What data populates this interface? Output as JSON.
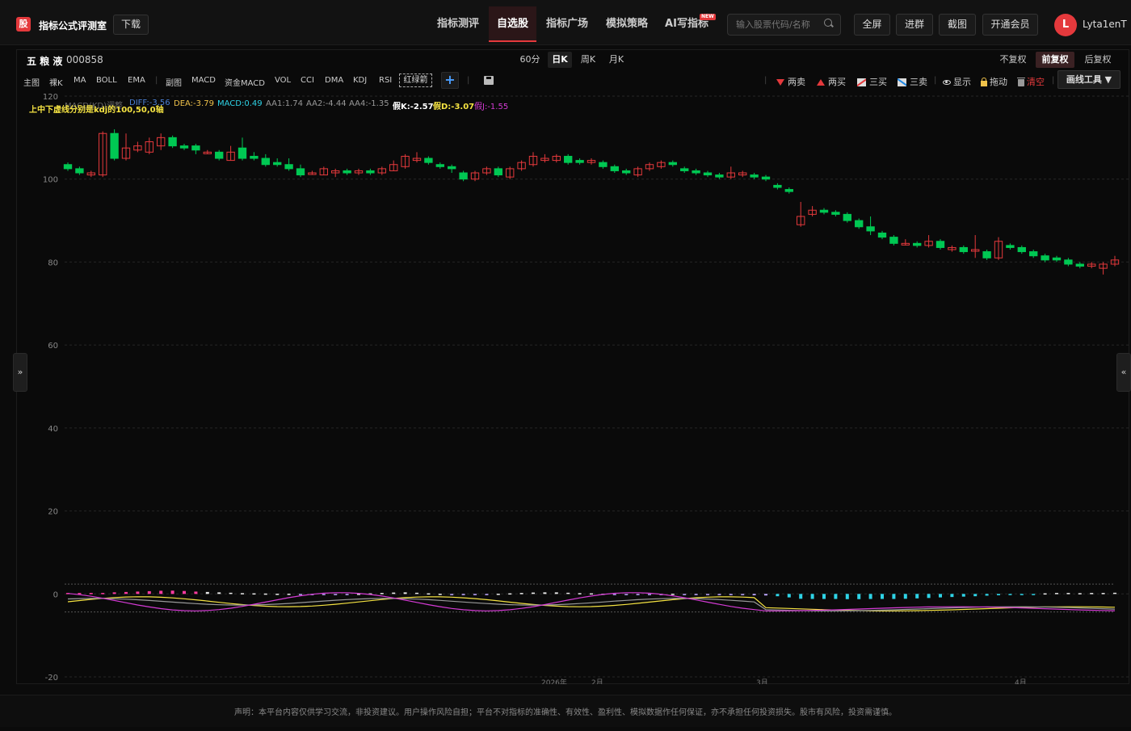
{
  "header": {
    "logo_char": "股",
    "site_title": "指标公式评测室",
    "download": "下载",
    "nav": [
      "指标测评",
      "自选股",
      "指标广场",
      "模拟策略",
      "AI写指标"
    ],
    "new_badge": "NEW",
    "search_placeholder": "输入股票代码/名称",
    "buttons": [
      "全屏",
      "进群",
      "截图",
      "开通会员"
    ],
    "avatar_letter": "L",
    "username": "Lyta1enT"
  },
  "stock": {
    "name": "五 粮 液",
    "code": "000858"
  },
  "periods": [
    "60分",
    "日K",
    "周K",
    "月K"
  ],
  "adjust": [
    "不复权",
    "前复权",
    "后复权"
  ],
  "indicators_main": [
    "主图",
    "裸K",
    "MA",
    "BOLL",
    "EMA"
  ],
  "indicators_sub": [
    "副图",
    "MACD",
    "资金MACD",
    "VOL",
    "CCI",
    "DMA",
    "KDJ",
    "RSI"
  ],
  "redgreen": "红绿箭",
  "plus": "+",
  "tools": {
    "sell2": "两卖",
    "buy2": "两买",
    "buy3": "三买",
    "sell3": "三卖",
    "show": "显示",
    "drag": "拖动",
    "clear": "清空",
    "draw": "画线工具 ▼"
  },
  "side": {
    "left": "»",
    "right": "«"
  },
  "legend": {
    "note": "上中下虚线分别是kdj的100,50,0轴",
    "overlay": "MACD(KD)调整",
    "diff": "DIFF:-3.56",
    "dea": "DEA:-3.79",
    "macd": "MACD:0.49",
    "aa1": "AA1:1.74",
    "aa2": "AA2:-4.44",
    "aa4": "AA4:-1.35",
    "k": "假K:-2.57",
    "d": "假D:-3.07",
    "j": "假J:-1.55"
  },
  "colors": {
    "up": "#e4393c",
    "down": "#00c853",
    "accent": "#e4393c"
  },
  "chart_data": {
    "type": "candlestick",
    "y_ticks": [
      120,
      100,
      80,
      60,
      40,
      20,
      0,
      -20
    ],
    "ylim": [
      -20,
      120
    ],
    "x_labels": [
      "2026年",
      "2月",
      "3月",
      "4月"
    ],
    "candles": [
      [
        103.5,
        102.5,
        104,
        102
      ],
      [
        102.5,
        101.5,
        103,
        101
      ],
      [
        101,
        101.5,
        102,
        100.5
      ],
      [
        101,
        111,
        111.5,
        100.5
      ],
      [
        111,
        105,
        112,
        104.5
      ],
      [
        105,
        107.5,
        111,
        104.5
      ],
      [
        107,
        108,
        109,
        106.5
      ],
      [
        106.5,
        109,
        110,
        106
      ],
      [
        108,
        110,
        111,
        107
      ],
      [
        110,
        108,
        110.5,
        107.5
      ],
      [
        108,
        107.5,
        108.5,
        107
      ],
      [
        108,
        107,
        108.5,
        106
      ],
      [
        106.5,
        106.5,
        107,
        106
      ],
      [
        106.5,
        105,
        107,
        104.5
      ],
      [
        104.5,
        106.5,
        108,
        104.5
      ],
      [
        107.5,
        105,
        110,
        104.5
      ],
      [
        105.5,
        105,
        106.5,
        104.5
      ],
      [
        105,
        103.5,
        106,
        103
      ],
      [
        104,
        103.5,
        105,
        103
      ],
      [
        103.5,
        102.5,
        105,
        102
      ],
      [
        102.5,
        101,
        103.5,
        100.5
      ],
      [
        101.5,
        101.5,
        102,
        101
      ],
      [
        101,
        102.5,
        103,
        101
      ],
      [
        101.5,
        102,
        102.5,
        100.5
      ],
      [
        102,
        101.5,
        102.5,
        101
      ],
      [
        101.5,
        102,
        102.5,
        101
      ],
      [
        102,
        101.5,
        102.5,
        101
      ],
      [
        101.5,
        102.5,
        103,
        101
      ],
      [
        102,
        103.5,
        104.5,
        102
      ],
      [
        103,
        105.5,
        106,
        102.5
      ],
      [
        104.5,
        105,
        106.5,
        104
      ],
      [
        105,
        104,
        105.5,
        103.5
      ],
      [
        103.5,
        103,
        104,
        102.5
      ],
      [
        103,
        102.5,
        103.5,
        101.5
      ],
      [
        101.5,
        100,
        102,
        99.5
      ],
      [
        100,
        101.5,
        102,
        99.5
      ],
      [
        101.5,
        102.5,
        103,
        101
      ],
      [
        102.5,
        101,
        103,
        100.5
      ],
      [
        100.5,
        102.5,
        103,
        100
      ],
      [
        102.5,
        104,
        104.5,
        102
      ],
      [
        103.5,
        105.5,
        106.5,
        103
      ],
      [
        104.5,
        105,
        106,
        104
      ],
      [
        104.5,
        105.5,
        106,
        104
      ],
      [
        105.5,
        104,
        106,
        103.5
      ],
      [
        104.5,
        104,
        105,
        103.5
      ],
      [
        104,
        104.5,
        105,
        103.5
      ],
      [
        104,
        103,
        104.5,
        102.5
      ],
      [
        103,
        102,
        103.5,
        101.5
      ],
      [
        102,
        101.5,
        102.5,
        101
      ],
      [
        101,
        102.5,
        103,
        100.5
      ],
      [
        102.5,
        103.5,
        104,
        102
      ],
      [
        103,
        104,
        104.5,
        102.5
      ],
      [
        104,
        103.5,
        104.5,
        103
      ],
      [
        102.5,
        102,
        103,
        101.5
      ],
      [
        102,
        101.5,
        102.5,
        101
      ],
      [
        101.5,
        101,
        102,
        100.5
      ],
      [
        101,
        100.5,
        101.5,
        100
      ],
      [
        100.5,
        101.5,
        103,
        100
      ],
      [
        101,
        101.5,
        102,
        100.5
      ],
      [
        101,
        100.5,
        101.5,
        100
      ],
      [
        100.5,
        100,
        101,
        99.5
      ],
      [
        98.5,
        98,
        99,
        97.5
      ],
      [
        97.5,
        97,
        98,
        96.5
      ],
      [
        89,
        91,
        94.5,
        88.5
      ],
      [
        91.5,
        92.5,
        93.5,
        91
      ],
      [
        92.5,
        92,
        93,
        91.5
      ],
      [
        92,
        91.5,
        92.5,
        91
      ],
      [
        91.5,
        90,
        92,
        89.5
      ],
      [
        90,
        88.5,
        90.5,
        88
      ],
      [
        88.5,
        87.5,
        91,
        86.5
      ],
      [
        87,
        86,
        87.5,
        85.5
      ],
      [
        86,
        84.5,
        86.5,
        84
      ],
      [
        84.5,
        84.5,
        85.5,
        84
      ],
      [
        84.5,
        84,
        85,
        83.5
      ],
      [
        84,
        85,
        86.5,
        83.5
      ],
      [
        85,
        83.5,
        85.5,
        83
      ],
      [
        83,
        83.5,
        84,
        82.5
      ],
      [
        83.5,
        82.5,
        84,
        82
      ],
      [
        83,
        83,
        86.5,
        81
      ],
      [
        82.5,
        81,
        83,
        80.5
      ],
      [
        81,
        85,
        86,
        80.5
      ],
      [
        84,
        83.5,
        84.5,
        83
      ],
      [
        83.5,
        82.5,
        84,
        82
      ],
      [
        82.5,
        81.5,
        83,
        81
      ],
      [
        81.5,
        80.5,
        82,
        80
      ],
      [
        81,
        80.5,
        81.5,
        80
      ],
      [
        80.5,
        79.5,
        81,
        79
      ],
      [
        79.5,
        79,
        80,
        78.5
      ],
      [
        79,
        79.5,
        80,
        78.5
      ],
      [
        78.5,
        79.5,
        80,
        77
      ],
      [
        79.5,
        80.5,
        81.5,
        79
      ]
    ],
    "macd_hist": [
      0.5,
      0.5,
      0.5,
      0.5,
      0.8,
      1,
      1.2,
      1.4,
      1.6,
      1.7,
      1.5,
      1.2,
      1,
      0.8,
      0.6,
      0.4,
      0.3,
      0.2,
      0.1,
      0.1,
      -0.2,
      -0.3,
      -0.3,
      -0.2,
      -0.1,
      0.1,
      0.3,
      0.5,
      0.7,
      0.8,
      0.6,
      0.3,
      0.1,
      -0.1,
      -0.3,
      -0.3,
      -0.2,
      0.1,
      0.3,
      0.5,
      0.7,
      0.8,
      0.8,
      0.6,
      0.4,
      0.3,
      0.1,
      -0.1,
      -0.3,
      -0.4,
      -0.3,
      -0.1,
      0.1,
      -0.1,
      -0.3,
      -0.4,
      -0.5,
      -0.5,
      -0.6,
      -0.7,
      -0.8,
      -1.2,
      -1.8,
      -2.5,
      -2.6,
      -2.6,
      -2.6,
      -2.7,
      -2.7,
      -2.6,
      -2.6,
      -2.6,
      -2.5,
      -2.3,
      -2.1,
      -1.8,
      -1.6,
      -1.4,
      -1.2,
      -0.9,
      -0.7,
      -0.6,
      -0.5,
      -0.5,
      0.3,
      0.5,
      0.5,
      0.4,
      0.5,
      0.5,
      0.6
    ]
  }
}
